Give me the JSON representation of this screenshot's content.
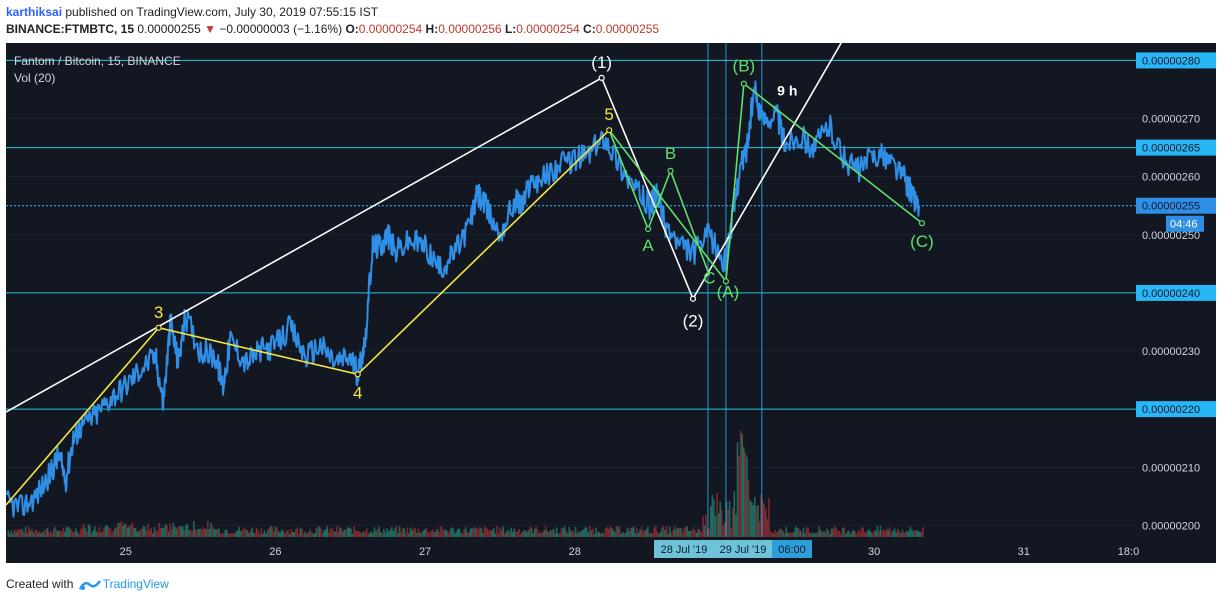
{
  "header": {
    "username": "karthiksai",
    "published_text": " published on TradingView.com, July 30, 2019 07:55:15 IST",
    "symbol_line": "BINANCE:FTMBTC, 15",
    "price": "0.00000255",
    "change_arrow": "▼",
    "change": "−0.00000003 (−1.16%)",
    "o_label": "O:",
    "o_value": "0.00000254",
    "h_label": "H:",
    "h_value": "0.00000256",
    "l_label": "L:",
    "l_value": "0.00000254",
    "c_label": "C:",
    "c_value": "0.00000255"
  },
  "legend": {
    "series": "Fantom / Bitcoin, 15, BINANCE",
    "volume": "Vol (20)"
  },
  "footer": {
    "created_with": "Created with",
    "brand": "TradingView"
  },
  "colors": {
    "background": "#131722",
    "price_line": "#2f8fe6",
    "volume_up": "#1e6b5e",
    "volume_down": "#7a2a2f",
    "hline": "#29b6f6",
    "hline_cyan": "#26c6da",
    "white_wave": "#ffffff",
    "yellow_wave": "#f5e642",
    "green_wave": "#5fe06a"
  },
  "chart_data": {
    "type": "line",
    "title": "Fantom / Bitcoin, 15, BINANCE",
    "x_ticks": [
      "25",
      "26",
      "27",
      "28",
      "29",
      "30",
      "31",
      "18:0"
    ],
    "y_ticks": [
      "0.00000200",
      "0.00000210",
      "0.00000220",
      "0.00000230",
      "0.00000240",
      "0.00000250",
      "0.00000255",
      "0.00000260",
      "0.00000265",
      "0.00000270",
      "0.00000280"
    ],
    "ylim": [
      1.98e-06,
      2.83e-06
    ],
    "x_range_days": [
      24.2,
      31.75
    ],
    "highlighted_prices": [
      {
        "label": "0.00000280",
        "value": 2.8e-06
      },
      {
        "label": "0.00000265",
        "value": 2.65e-06
      },
      {
        "label": "0.00000255",
        "value": 2.55e-06
      },
      {
        "label": "0.00000240",
        "value": 2.4e-06
      },
      {
        "label": "0.00000220",
        "value": 2.2e-06
      }
    ],
    "countdown": "04:46",
    "time_labels": [
      {
        "text": "28 Jul '19",
        "day": 28.88
      },
      {
        "text": "29 Jul '19",
        "day": 29.12
      },
      {
        "text": "06:00",
        "day": 29.25
      }
    ],
    "vertical_markers_day": [
      28.89,
      29.01,
      29.25
    ],
    "series": [
      {
        "values_x_day": [
          24.2,
          24.3,
          24.4,
          24.5,
          24.55,
          24.6,
          24.65,
          24.7,
          24.8,
          24.9,
          25.0,
          25.1,
          25.2,
          25.25,
          25.3,
          25.35,
          25.4,
          25.5,
          25.6,
          25.65,
          25.7,
          25.8,
          25.9,
          26.0,
          26.1,
          26.2,
          26.3,
          26.4,
          26.5,
          26.55,
          26.6,
          26.65,
          26.7,
          26.75,
          26.8,
          26.9,
          27.0,
          27.1,
          27.2,
          27.3,
          27.35,
          27.4,
          27.5,
          27.6,
          27.65,
          27.7,
          27.8,
          27.9,
          28.0,
          28.1,
          28.2,
          28.3,
          28.4,
          28.5,
          28.55,
          28.6,
          28.7,
          28.8,
          28.9,
          29.0,
          29.05,
          29.1,
          29.15,
          29.2,
          29.25,
          29.35,
          29.4,
          29.5,
          29.6,
          29.7,
          29.8,
          29.9,
          30.0,
          30.1,
          30.2,
          30.25,
          30.3
        ],
        "values_y": [
          2.04e-06,
          2.03e-06,
          2.05e-06,
          2.09e-06,
          2.12e-06,
          2.08e-06,
          2.15e-06,
          2.17e-06,
          2.19e-06,
          2.22e-06,
          2.24e-06,
          2.27e-06,
          2.29e-06,
          2.21e-06,
          2.35e-06,
          2.28e-06,
          2.36e-06,
          2.3e-06,
          2.29e-06,
          2.24e-06,
          2.32e-06,
          2.28e-06,
          2.3e-06,
          2.31e-06,
          2.34e-06,
          2.29e-06,
          2.31e-06,
          2.28e-06,
          2.29e-06,
          2.26e-06,
          2.32e-06,
          2.48e-06,
          2.48e-06,
          2.5e-06,
          2.47e-06,
          2.49e-06,
          2.48e-06,
          2.44e-06,
          2.47e-06,
          2.52e-06,
          2.57e-06,
          2.55e-06,
          2.5e-06,
          2.56e-06,
          2.55e-06,
          2.59e-06,
          2.6e-06,
          2.62e-06,
          2.63e-06,
          2.64e-06,
          2.67e-06,
          2.62e-06,
          2.58e-06,
          2.55e-06,
          2.57e-06,
          2.52e-06,
          2.48e-06,
          2.47e-06,
          2.5e-06,
          2.45e-06,
          2.52e-06,
          2.61e-06,
          2.65e-06,
          2.75e-06,
          2.7e-06,
          2.71e-06,
          2.66e-06,
          2.67e-06,
          2.65e-06,
          2.69e-06,
          2.63e-06,
          2.61e-06,
          2.64e-06,
          2.63e-06,
          2.6e-06,
          2.57e-06,
          2.55e-06
        ]
      }
    ],
    "annotations": {
      "white": [
        {
          "label": "(1)",
          "day": 28.18,
          "price": 2.77e-06
        },
        {
          "label": "(2)",
          "day": 28.79,
          "price": 2.39e-06
        }
      ],
      "yellow": [
        {
          "label": "3",
          "day": 25.22,
          "price": 2.34e-06
        },
        {
          "label": "4",
          "day": 26.55,
          "price": 2.26e-06
        },
        {
          "label": "5",
          "day": 28.23,
          "price": 2.68e-06
        }
      ],
      "green": [
        {
          "label": "A",
          "day": 28.49,
          "price": 2.51e-06
        },
        {
          "label": "B",
          "day": 28.64,
          "price": 2.61e-06
        },
        {
          "label": "C",
          "day": 28.9,
          "price": 2.43e-06
        },
        {
          "label": "(A)",
          "day": 29.01,
          "price": 2.42e-06
        },
        {
          "label": "(B)",
          "day": 29.13,
          "price": 2.76e-06
        },
        {
          "label": "(C)",
          "day": 30.32,
          "price": 2.52e-06
        }
      ],
      "text": [
        {
          "label": "9 h",
          "day": 29.42,
          "price": 2.74e-06
        }
      ]
    }
  }
}
